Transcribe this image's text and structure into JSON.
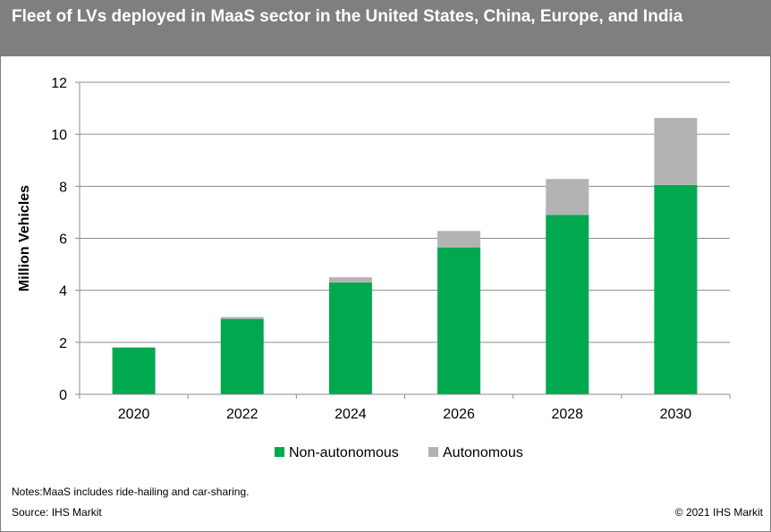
{
  "header": {
    "title": "Fleet of LVs deployed in MaaS sector in the United States, China, Europe, and India"
  },
  "chart_data": {
    "type": "bar",
    "stacked": true,
    "categories": [
      "2020",
      "2022",
      "2024",
      "2026",
      "2028",
      "2030"
    ],
    "series": [
      {
        "name": "Non-autonomous",
        "color": "#00a84f",
        "values": [
          1.8,
          2.9,
          4.3,
          5.65,
          6.9,
          8.05
        ]
      },
      {
        "name": "Autonomous",
        "color": "#b3b3b3",
        "values": [
          0.0,
          0.07,
          0.2,
          0.63,
          1.38,
          2.58
        ]
      }
    ],
    "ylabel": "Million Vehicles",
    "xlabel": "",
    "ylim": [
      0,
      12
    ],
    "yticks": [
      0,
      2,
      4,
      6,
      8,
      10,
      12
    ],
    "grid": true,
    "legend_position": "bottom"
  },
  "footer": {
    "notes": "Notes:MaaS includes ride-hailing and car-sharing.",
    "source": "Source: IHS Markit",
    "copyright": "© 2021 IHS Markit"
  }
}
